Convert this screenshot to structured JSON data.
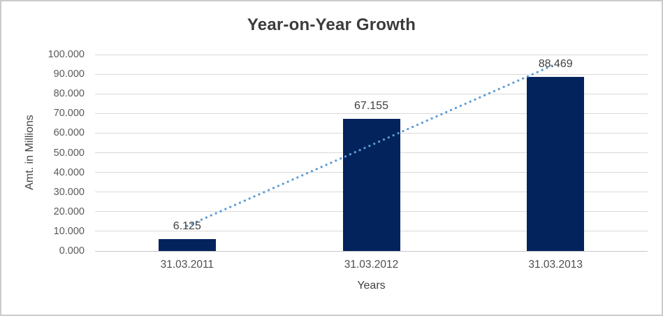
{
  "chart_data": {
    "type": "bar",
    "title": "Year-on-Year Growth",
    "xlabel": "Years",
    "ylabel": "Amt. in Millions",
    "categories": [
      "31.03.2011",
      "31.03.2012",
      "31.03.2013"
    ],
    "values": [
      6.125,
      67.155,
      88.469
    ],
    "data_labels": [
      "6.125",
      "67.155",
      "88.469"
    ],
    "ylim": [
      0,
      100
    ],
    "y_tick_values": [
      0,
      10,
      20,
      30,
      40,
      50,
      60,
      70,
      80,
      90,
      100
    ],
    "y_tick_labels": [
      "0.000",
      "10.000",
      "20.000",
      "30.000",
      "40.000",
      "50.000",
      "60.000",
      "70.000",
      "80.000",
      "90.000",
      "100.000"
    ],
    "grid": true,
    "legend": "none",
    "trendline": {
      "type": "linear",
      "style": "dotted",
      "start_value": 12.74,
      "end_value": 95.09
    }
  },
  "colors": {
    "bar": "#03235d",
    "trendline": "#5b9bd5",
    "gridline": "#d9d9d9",
    "axis_line": "#c6c6c6",
    "title_text": "#3b3b3b",
    "tick_text": "#595959",
    "border": "#cbcbcb"
  }
}
